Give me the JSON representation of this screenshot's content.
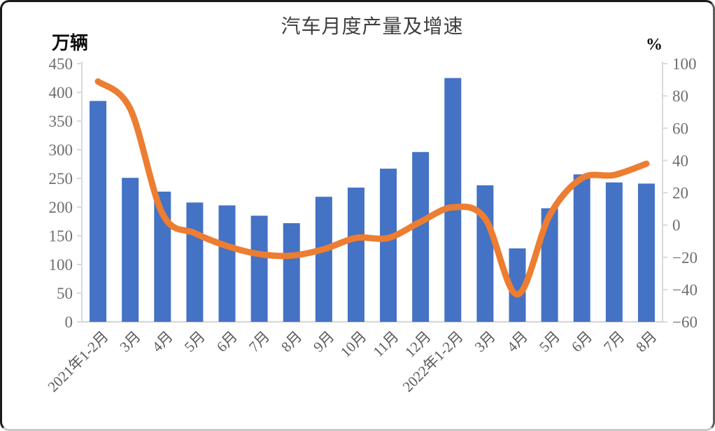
{
  "title": "汽车月度产量及增速",
  "left_axis": {
    "unit_label": "万辆",
    "ticks": [
      "450",
      "400",
      "350",
      "300",
      "250",
      "200",
      "150",
      "100",
      "50",
      "0"
    ]
  },
  "right_axis": {
    "unit_label": "%",
    "ticks": [
      "100",
      "80",
      "60",
      "40",
      "20",
      "0",
      "−20",
      "−40",
      "−60"
    ]
  },
  "chart_data": {
    "type": "bar+line",
    "title": "汽车月度产量及增速",
    "xlabel": "",
    "ylabel_left": "万辆",
    "ylabel_right": "%",
    "categories": [
      "2021年1-2月",
      "3月",
      "4月",
      "5月",
      "6月",
      "7月",
      "8月",
      "9月",
      "10月",
      "11月",
      "12月",
      "2022年1-2月",
      "3月",
      "4月",
      "5月",
      "6月",
      "7月",
      "8月"
    ],
    "series": [
      {
        "name": "汽车月度产量",
        "type": "bar",
        "y_axis": "left",
        "unit": "万辆",
        "color": "#4472C4",
        "values": [
          385,
          251,
          227,
          208,
          203,
          185,
          172,
          218,
          234,
          267,
          296,
          425,
          238,
          128,
          198,
          257,
          243,
          241
        ]
      },
      {
        "name": "增速",
        "type": "line",
        "y_axis": "right",
        "unit": "%",
        "color": "#ED7D31",
        "smooth": true,
        "values": [
          89,
          72,
          7,
          -5,
          -13,
          -18,
          -19,
          -15,
          -8,
          -8,
          2,
          11,
          4,
          -43,
          6,
          29,
          31,
          38
        ]
      }
    ],
    "left_ylim": [
      0,
      450
    ],
    "right_ylim": [
      -60,
      100
    ],
    "grid": false,
    "legend": "none",
    "axis_color": "#D9D9D9"
  }
}
